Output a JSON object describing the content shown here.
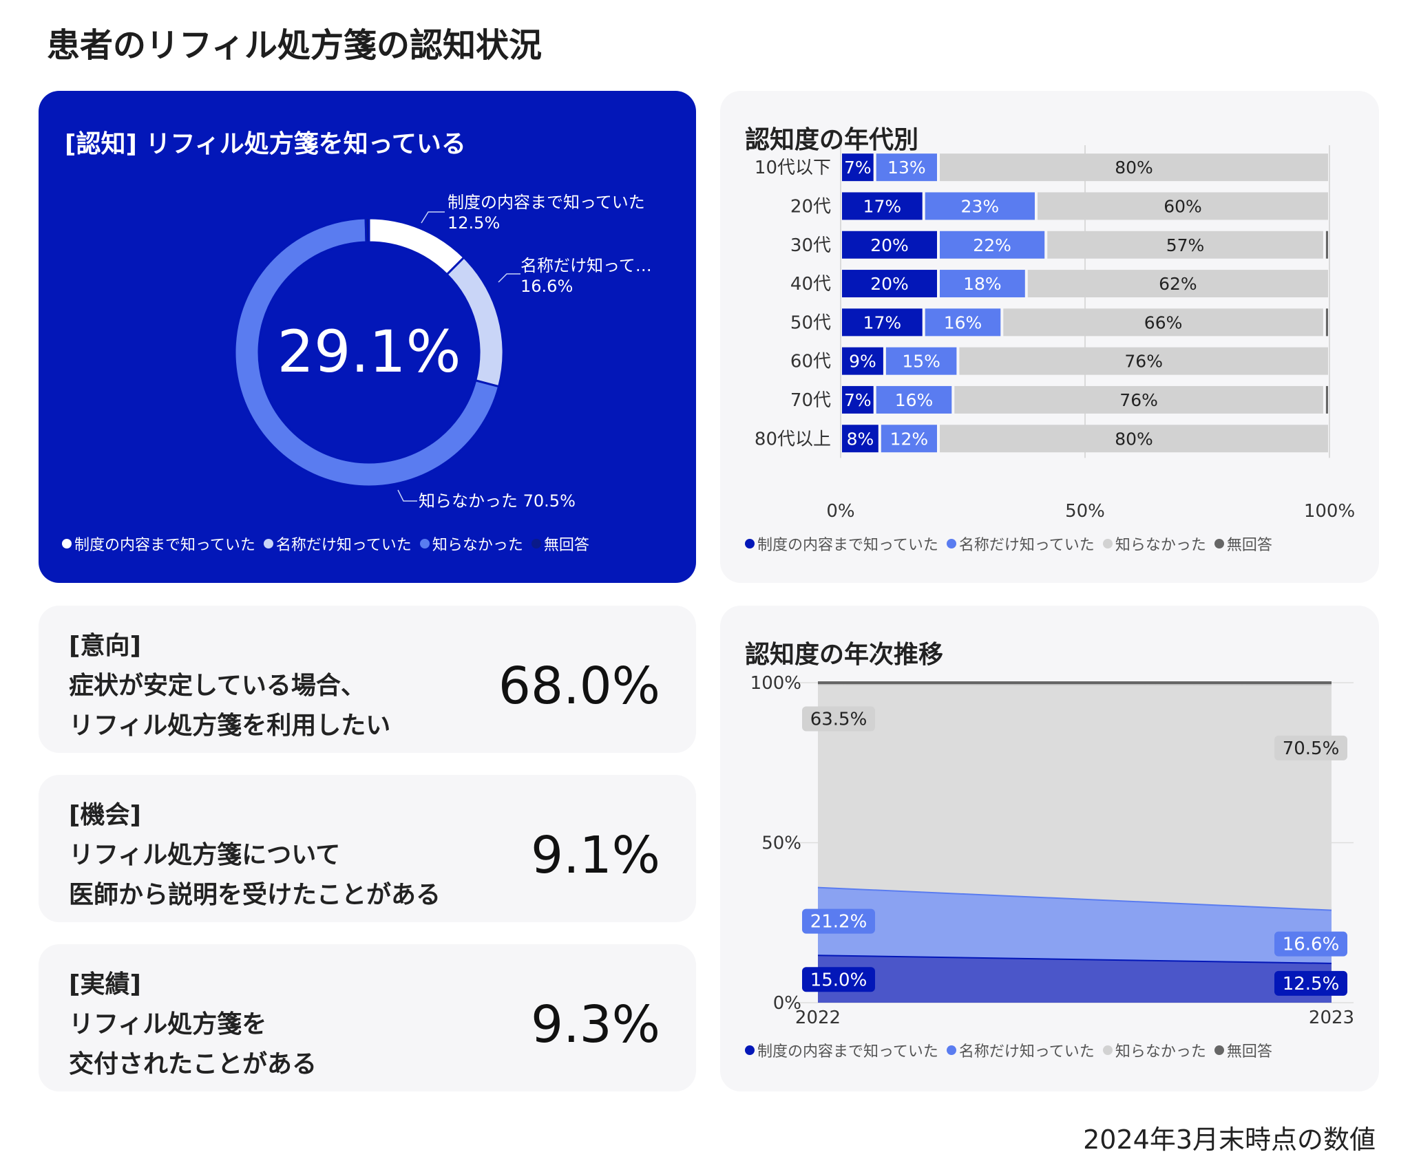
{
  "page_title": "患者のリフィル処方箋の認知状況",
  "footnote": "2024年3月末時点の数値",
  "colors": {
    "dark_blue": "#0317b8",
    "mid_blue": "#5a7cf0",
    "light_gray": "#d2d2d2",
    "no_answer": "#666666"
  },
  "legend_labels": [
    "制度の内容まで知っていた",
    "名称だけ知っていた",
    "知らなかった",
    "無回答"
  ],
  "stats": [
    {
      "tag": "[意向]",
      "line1": "症状が安定している場合、",
      "line2": "リフィル処方箋を利用したい",
      "value": "68.0%"
    },
    {
      "tag": "[機会]",
      "line1": "リフィル処方箋について",
      "line2": "医師から説明を受けたことがある",
      "value": "9.1%"
    },
    {
      "tag": "[実績]",
      "line1": "リフィル処方箋を",
      "line2": "交付されたことがある",
      "value": "9.3%"
    }
  ],
  "chart_data": [
    {
      "type": "pie",
      "title": "[認知] リフィル処方箋を知っている",
      "center_label": "29.1%",
      "slices": [
        {
          "label": "制度の内容まで知っていた",
          "value": 12.5,
          "color": "#ffffff",
          "callout": "制度の内容まで知っていた",
          "callout_value": "12.5%"
        },
        {
          "label": "名称だけ知っていた",
          "value": 16.6,
          "color": "#c9d5f7",
          "callout": "名称だけ知って…",
          "callout_value": "16.6%"
        },
        {
          "label": "知らなかった",
          "value": 70.5,
          "color": "#5a7cf0",
          "callout": "知らなかった 70.5%"
        },
        {
          "label": "無回答",
          "value": 0.4,
          "color": "#0a1a8a"
        }
      ]
    },
    {
      "type": "bar",
      "stacked": true,
      "orientation": "horizontal",
      "title": "認知度の年代別",
      "categories": [
        "10代以下",
        "20代",
        "30代",
        "40代",
        "50代",
        "60代",
        "70代",
        "80代以上"
      ],
      "series": [
        {
          "name": "制度の内容まで知っていた",
          "values": [
            7,
            17,
            20,
            20,
            17,
            9,
            7,
            8
          ]
        },
        {
          "name": "名称だけ知っていた",
          "values": [
            13,
            23,
            22,
            18,
            16,
            15,
            16,
            12
          ]
        },
        {
          "name": "知らなかった",
          "values": [
            80,
            60,
            57,
            62,
            66,
            76,
            76,
            80
          ]
        },
        {
          "name": "無回答",
          "values": [
            0,
            0,
            1,
            0,
            1,
            0,
            1,
            0
          ]
        }
      ],
      "xlim": [
        0,
        100
      ],
      "xticks": [
        "0%",
        "50%",
        "100%"
      ],
      "legend": "bottom"
    },
    {
      "type": "area",
      "stacked": true,
      "title": "認知度の年次推移",
      "x": [
        "2022",
        "2023"
      ],
      "series": [
        {
          "name": "制度の内容まで知っていた",
          "values": [
            15.0,
            12.5
          ],
          "labels": [
            "15.0%",
            "12.5%"
          ]
        },
        {
          "name": "名称だけ知っていた",
          "values": [
            21.2,
            16.6
          ],
          "labels": [
            "21.2%",
            "16.6%"
          ]
        },
        {
          "name": "知らなかった",
          "values": [
            63.5,
            70.5
          ],
          "labels": [
            "63.5%",
            "70.5%"
          ]
        },
        {
          "name": "無回答",
          "values": [
            0.3,
            0.4
          ]
        }
      ],
      "ylim": [
        0,
        100
      ],
      "yticks": [
        "0%",
        "50%",
        "100%"
      ],
      "legend": "bottom"
    }
  ]
}
